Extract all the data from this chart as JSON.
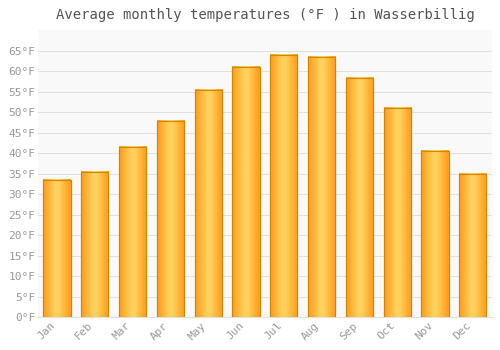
{
  "title": "Average monthly temperatures (°F ) in Wasserbillig",
  "months": [
    "Jan",
    "Feb",
    "Mar",
    "Apr",
    "May",
    "Jun",
    "Jul",
    "Aug",
    "Sep",
    "Oct",
    "Nov",
    "Dec"
  ],
  "values": [
    33.5,
    35.5,
    41.5,
    48.0,
    55.5,
    61.0,
    64.0,
    63.5,
    58.5,
    51.0,
    40.5,
    35.0
  ],
  "bar_color_center": "#FFD966",
  "bar_color_edge_left": "#FFA020",
  "bar_color_edge_right": "#E87800",
  "bar_edge_color": "#CC8800",
  "ylim": [
    0,
    70
  ],
  "yticks": [
    0,
    5,
    10,
    15,
    20,
    25,
    30,
    35,
    40,
    45,
    50,
    55,
    60,
    65
  ],
  "ylabel_suffix": "°F",
  "background_color": "#ffffff",
  "plot_bg_color": "#f9f9f9",
  "grid_color": "#e0e0e0",
  "title_fontsize": 10,
  "tick_fontsize": 8,
  "tick_color": "#999999",
  "font_family": "monospace",
  "bar_width": 0.72
}
